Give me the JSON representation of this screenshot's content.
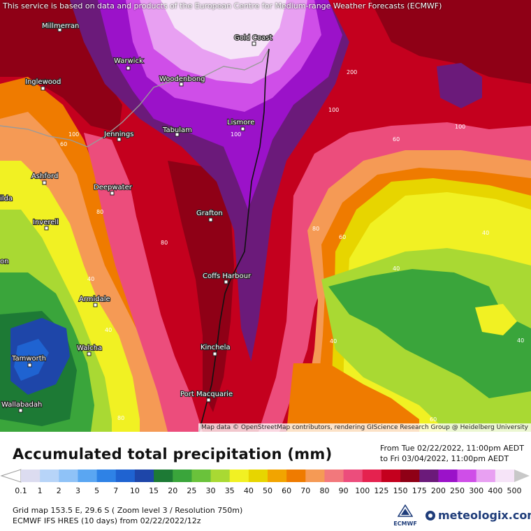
{
  "attribution_top": "This service is based on data and products of the European Centre for Medium-range Weather Forecasts (ECMWF)",
  "attribution_bottom": "Map data © OpenStreetMap contributors, rendering GIScience Research Group @ Heidelberg University",
  "legend": {
    "title": "Accumulated total precipitation (mm)",
    "period_from": "From Tue 02/22/2022, 11:00pm AEDT",
    "period_to": "to Fri 03/04/2022, 11:00pm AEDT",
    "bins": [
      {
        "label": "0.1",
        "color": "#dcdcf0"
      },
      {
        "label": "1",
        "color": "#b7d4f8"
      },
      {
        "label": "2",
        "color": "#8fc2f7"
      },
      {
        "label": "3",
        "color": "#5aa6f2"
      },
      {
        "label": "5",
        "color": "#2e82e6"
      },
      {
        "label": "7",
        "color": "#1f63d1"
      },
      {
        "label": "10",
        "color": "#1e46a9"
      },
      {
        "label": "15",
        "color": "#1d7a35"
      },
      {
        "label": "20",
        "color": "#3aa53b"
      },
      {
        "label": "25",
        "color": "#6ac23b"
      },
      {
        "label": "30",
        "color": "#a9d933"
      },
      {
        "label": "35",
        "color": "#f1f123"
      },
      {
        "label": "40",
        "color": "#e7d500"
      },
      {
        "label": "50",
        "color": "#f2a400"
      },
      {
        "label": "60",
        "color": "#ef7b00"
      },
      {
        "label": "70",
        "color": "#f59a55"
      },
      {
        "label": "80",
        "color": "#f2787c"
      },
      {
        "label": "90",
        "color": "#ec4d7c"
      },
      {
        "label": "100",
        "color": "#e5224f"
      },
      {
        "label": "125",
        "color": "#c4001e"
      },
      {
        "label": "150",
        "color": "#8f0016"
      },
      {
        "label": "175",
        "color": "#6b1a7a"
      },
      {
        "label": "200",
        "color": "#9b12c9"
      },
      {
        "label": "250",
        "color": "#cf4ee8"
      },
      {
        "label": "300",
        "color": "#e8a0f2"
      },
      {
        "label": "400",
        "color": "#f6e4f8"
      },
      {
        "label": "500",
        "color": "#c8c8c8"
      }
    ]
  },
  "info": {
    "grid": "Grid map 153.5 E, 29.6 S ( Zoom level 3 / Resolution 750m)",
    "model": "ECMWF IFS HRES (10 days) from  02/22/2022/12z"
  },
  "logos": {
    "ecmwf": "ECMWF",
    "meteologix": "meteologix.com"
  },
  "places": [
    "Millmerran",
    "Gold Coast",
    "Warwick",
    "Inglewood",
    "Woodenbong",
    "Jennings",
    "Tabulam",
    "Lismore",
    "Ashford",
    "Deepwater",
    "Grafton",
    "Inverell",
    "Coffs Harbour",
    "Armidale",
    "Walcha",
    "Kinchela",
    "Tamworth",
    "Port Macquarie",
    "Wallabadah",
    "ilda",
    "on"
  ],
  "contour_labels": [
    "200",
    "100",
    "60",
    "100",
    "60",
    "80",
    "40",
    "80",
    "60",
    "40",
    "40",
    "40",
    "100",
    "80",
    "60",
    "100",
    "80",
    "40",
    "40"
  ]
}
